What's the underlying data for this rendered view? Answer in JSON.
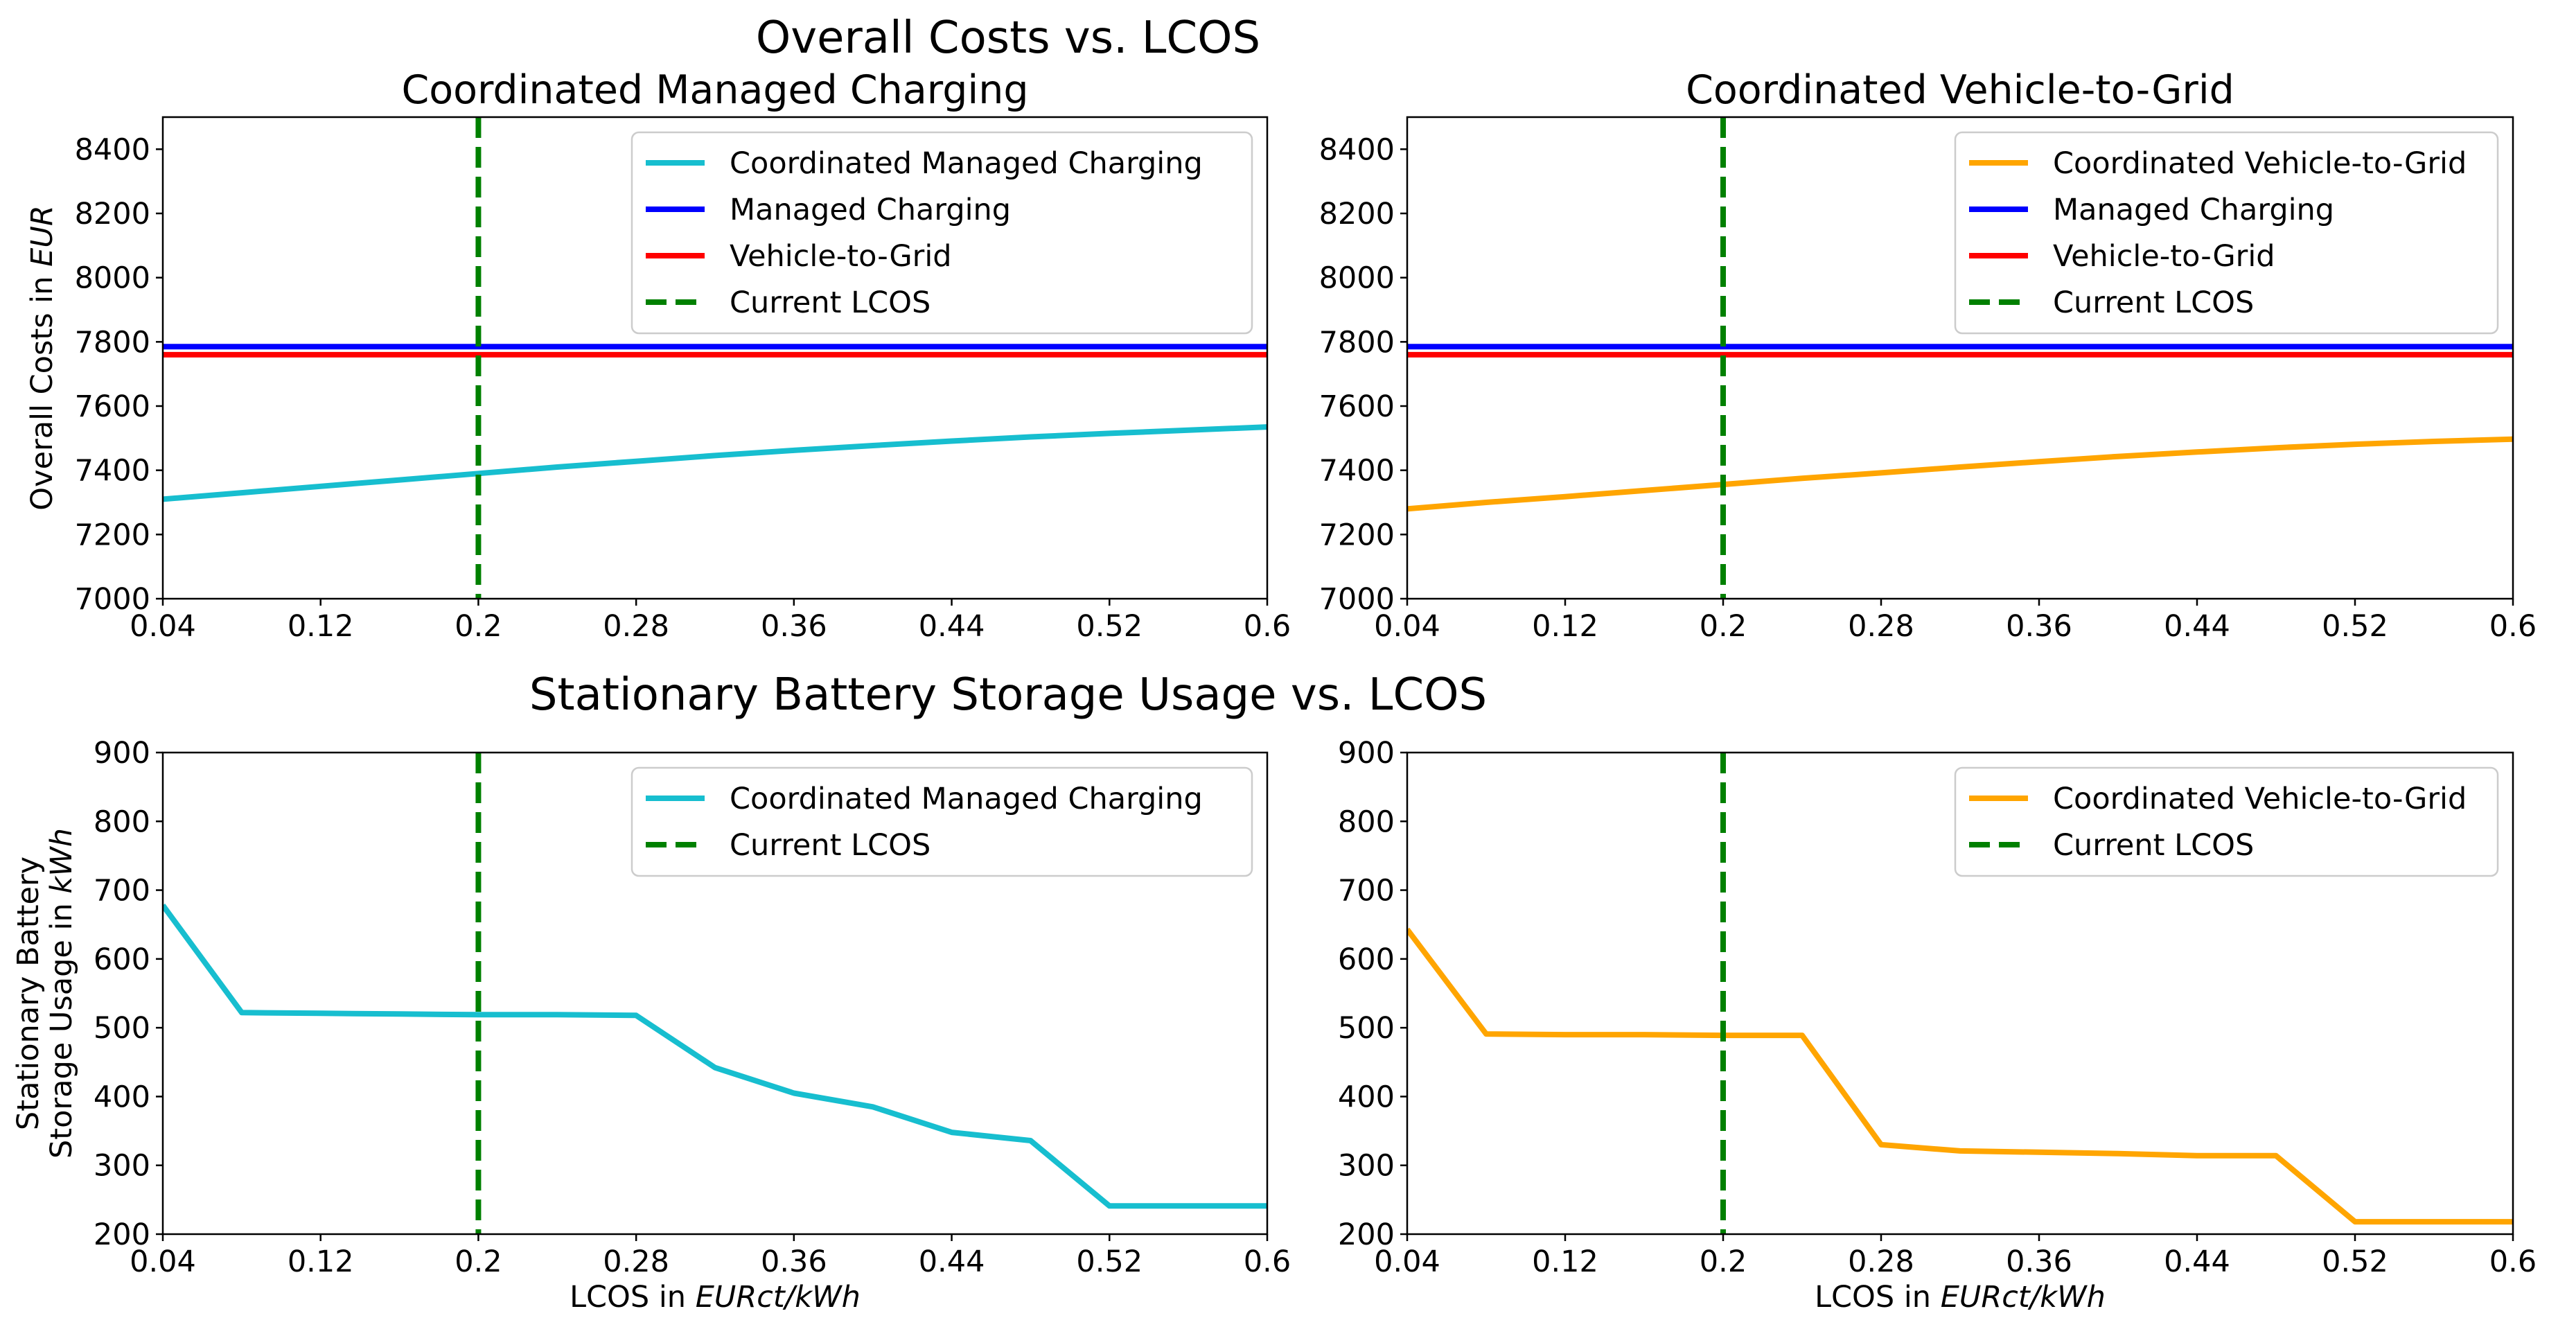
{
  "figure": {
    "title_top": "Overall Costs vs. LCOS",
    "title_bottom": "Stationary Battery Storage Usage vs. LCOS"
  },
  "colors": {
    "coordinated_managed": "#17becf",
    "coordinated_v2g": "#ffa500",
    "managed": "#0000ff",
    "v2g": "#ff0000",
    "current_lcos": "#008000"
  },
  "chart_data": [
    {
      "type": "line",
      "title": "Coordinated Managed Charging",
      "xlabel": "",
      "ylabel": "Overall Costs in EUR",
      "xlim": [
        0.04,
        0.6
      ],
      "ylim": [
        7000,
        8500
      ],
      "xticks": [
        "0.04",
        "0.12",
        "0.2",
        "0.28",
        "0.36",
        "0.44",
        "0.52",
        "0.6"
      ],
      "yticks": [
        "7000",
        "7200",
        "7400",
        "7600",
        "7800",
        "8000",
        "8200",
        "8400"
      ],
      "legend_position": "upper right",
      "series": [
        {
          "name": "Coordinated Managed Charging",
          "color": "#17becf",
          "style": "solid",
          "x": [
            0.04,
            0.08,
            0.12,
            0.16,
            0.2,
            0.24,
            0.28,
            0.32,
            0.36,
            0.4,
            0.44,
            0.48,
            0.52,
            0.56,
            0.6
          ],
          "y": [
            7310,
            7330,
            7350,
            7370,
            7390,
            7410,
            7428,
            7446,
            7462,
            7477,
            7491,
            7504,
            7515,
            7525,
            7535
          ]
        },
        {
          "name": "Managed Charging",
          "color": "#0000ff",
          "style": "solid",
          "x": [
            0.04,
            0.6
          ],
          "y": [
            7785,
            7785
          ]
        },
        {
          "name": "Vehicle-to-Grid",
          "color": "#ff0000",
          "style": "solid",
          "x": [
            0.04,
            0.6
          ],
          "y": [
            7760,
            7760
          ]
        },
        {
          "name": "Current LCOS",
          "color": "#008000",
          "style": "dashed",
          "vline_x": 0.2
        }
      ]
    },
    {
      "type": "line",
      "title": "Coordinated Vehicle-to-Grid",
      "xlabel": "",
      "ylabel": "",
      "xlim": [
        0.04,
        0.6
      ],
      "ylim": [
        7000,
        8500
      ],
      "xticks": [
        "0.04",
        "0.12",
        "0.2",
        "0.28",
        "0.36",
        "0.44",
        "0.52",
        "0.6"
      ],
      "yticks": [
        "7000",
        "7200",
        "7400",
        "7600",
        "7800",
        "8000",
        "8200",
        "8400"
      ],
      "legend_position": "upper right",
      "series": [
        {
          "name": "Coordinated Vehicle-to-Grid",
          "color": "#ffa500",
          "style": "solid",
          "x": [
            0.04,
            0.08,
            0.12,
            0.16,
            0.2,
            0.24,
            0.28,
            0.32,
            0.36,
            0.4,
            0.44,
            0.48,
            0.52,
            0.56,
            0.6
          ],
          "y": [
            7280,
            7300,
            7318,
            7337,
            7356,
            7375,
            7392,
            7410,
            7427,
            7443,
            7457,
            7470,
            7481,
            7490,
            7497
          ]
        },
        {
          "name": "Managed Charging",
          "color": "#0000ff",
          "style": "solid",
          "x": [
            0.04,
            0.6
          ],
          "y": [
            7785,
            7785
          ]
        },
        {
          "name": "Vehicle-to-Grid",
          "color": "#ff0000",
          "style": "solid",
          "x": [
            0.04,
            0.6
          ],
          "y": [
            7760,
            7760
          ]
        },
        {
          "name": "Current LCOS",
          "color": "#008000",
          "style": "dashed",
          "vline_x": 0.2
        }
      ]
    },
    {
      "type": "line",
      "title": "",
      "xlabel": "LCOS in EURct/kWh",
      "ylabel": "Stationary Battery Storage Usage in kWh",
      "xlim": [
        0.04,
        0.6
      ],
      "ylim": [
        200,
        900
      ],
      "xticks": [
        "0.04",
        "0.12",
        "0.2",
        "0.28",
        "0.36",
        "0.44",
        "0.52",
        "0.6"
      ],
      "yticks": [
        "200",
        "300",
        "400",
        "500",
        "600",
        "700",
        "800",
        "900"
      ],
      "legend_position": "upper right",
      "series": [
        {
          "name": "Coordinated Managed Charging",
          "color": "#17becf",
          "style": "solid",
          "x": [
            0.04,
            0.08,
            0.12,
            0.16,
            0.2,
            0.24,
            0.28,
            0.32,
            0.36,
            0.4,
            0.44,
            0.48,
            0.52,
            0.56,
            0.6
          ],
          "y": [
            678,
            522,
            521,
            520,
            519,
            519,
            518,
            442,
            405,
            385,
            348,
            336,
            241,
            241,
            241
          ]
        },
        {
          "name": "Current LCOS",
          "color": "#008000",
          "style": "dashed",
          "vline_x": 0.2
        }
      ]
    },
    {
      "type": "line",
      "title": "",
      "xlabel": "LCOS in EURct/kWh",
      "ylabel": "",
      "xlim": [
        0.04,
        0.6
      ],
      "ylim": [
        200,
        900
      ],
      "xticks": [
        "0.04",
        "0.12",
        "0.2",
        "0.28",
        "0.36",
        "0.44",
        "0.52",
        "0.6"
      ],
      "yticks": [
        "200",
        "300",
        "400",
        "500",
        "600",
        "700",
        "800",
        "900"
      ],
      "legend_position": "upper right",
      "series": [
        {
          "name": "Coordinated Vehicle-to-Grid",
          "color": "#ffa500",
          "style": "solid",
          "x": [
            0.04,
            0.08,
            0.12,
            0.16,
            0.2,
            0.24,
            0.28,
            0.32,
            0.36,
            0.4,
            0.44,
            0.48,
            0.52,
            0.56,
            0.6
          ],
          "y": [
            643,
            491,
            490,
            490,
            489,
            489,
            330,
            321,
            319,
            317,
            314,
            314,
            218,
            218,
            218
          ]
        },
        {
          "name": "Current LCOS",
          "color": "#008000",
          "style": "dashed",
          "vline_x": 0.2
        }
      ]
    }
  ]
}
